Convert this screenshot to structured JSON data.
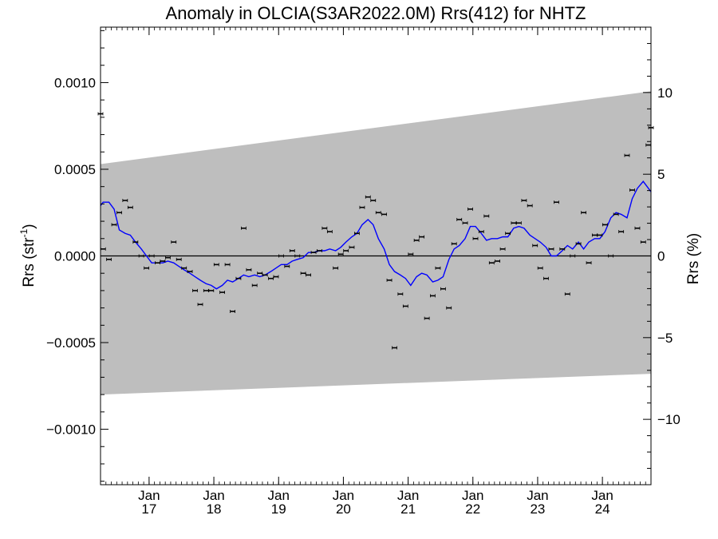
{
  "chart_data": {
    "type": "scatter",
    "title": "Anomaly in OLCIA(S3AR2022.0M) Rrs(412) for NHTZ",
    "ylabel": "Rrs (str",
    "ylabel_sup": "-1",
    "ylabel_close": ")",
    "y2label": "Rrs (%)",
    "xlim": [
      2016.25,
      2024.75
    ],
    "ylim": [
      -0.00132,
      0.00132
    ],
    "y2lim": [
      -14,
      14
    ],
    "x_ticks": [
      {
        "x": 2017.0,
        "month": "Jan",
        "year": "17"
      },
      {
        "x": 2018.0,
        "month": "Jan",
        "year": "18"
      },
      {
        "x": 2019.0,
        "month": "Jan",
        "year": "19"
      },
      {
        "x": 2020.0,
        "month": "Jan",
        "year": "20"
      },
      {
        "x": 2021.0,
        "month": "Jan",
        "year": "21"
      },
      {
        "x": 2022.0,
        "month": "Jan",
        "year": "22"
      },
      {
        "x": 2023.0,
        "month": "Jan",
        "year": "23"
      },
      {
        "x": 2024.0,
        "month": "Jan",
        "year": "24"
      }
    ],
    "y_ticks": [
      {
        "v": 0.001,
        "label": "0.0010"
      },
      {
        "v": 0.0005,
        "label": "0.0005"
      },
      {
        "v": 0.0,
        "label": "0.0000"
      },
      {
        "v": -0.0005,
        "label": "−0.0005"
      },
      {
        "v": -0.001,
        "label": "−0.0010"
      }
    ],
    "y2_ticks": [
      {
        "v": 10,
        "label": "10"
      },
      {
        "v": 5,
        "label": "5"
      },
      {
        "v": 0,
        "label": "0"
      },
      {
        "v": -5,
        "label": "−5"
      },
      {
        "v": -10,
        "label": "−10"
      }
    ],
    "band": {
      "upper": [
        [
          2016.25,
          0.00053
        ],
        [
          2024.75,
          0.00095
        ]
      ],
      "lower": [
        [
          2016.25,
          -0.0008
        ],
        [
          2024.75,
          -0.00068
        ]
      ],
      "color": "#bebebe"
    },
    "zero_line": true,
    "points": [
      [
        2016.25,
        0.00082
      ],
      [
        2016.29,
        4e-05
      ],
      [
        2016.38,
        -2e-05
      ],
      [
        2016.46,
        0.00018
      ],
      [
        2016.54,
        0.00025
      ],
      [
        2016.63,
        0.00032
      ],
      [
        2016.71,
        0.00028
      ],
      [
        2016.79,
        8e-05
      ],
      [
        2016.88,
        0.0
      ],
      [
        2016.96,
        -7e-05
      ],
      [
        2017.04,
        0.0
      ],
      [
        2017.13,
        -4e-05
      ],
      [
        2017.21,
        -3e-05
      ],
      [
        2017.29,
        -1e-05
      ],
      [
        2017.38,
        8e-05
      ],
      [
        2017.46,
        -2e-05
      ],
      [
        2017.54,
        -7e-05
      ],
      [
        2017.63,
        -9e-05
      ],
      [
        2017.71,
        -0.0002
      ],
      [
        2017.79,
        -0.00028
      ],
      [
        2017.88,
        -0.0002
      ],
      [
        2017.96,
        -0.0002
      ],
      [
        2018.04,
        -5e-05
      ],
      [
        2018.13,
        -0.00021
      ],
      [
        2018.21,
        -5e-05
      ],
      [
        2018.29,
        -0.00032
      ],
      [
        2018.38,
        -0.00013
      ],
      [
        2018.46,
        0.00016
      ],
      [
        2018.54,
        -8e-05
      ],
      [
        2018.63,
        -0.00017
      ],
      [
        2018.71,
        -0.0001
      ],
      [
        2018.79,
        -0.00011
      ],
      [
        2018.88,
        -0.00013
      ],
      [
        2018.96,
        -0.00012
      ],
      [
        2019.04,
        0.0
      ],
      [
        2019.13,
        -6e-05
      ],
      [
        2019.21,
        3e-05
      ],
      [
        2019.29,
        0.0
      ],
      [
        2019.38,
        -0.0001
      ],
      [
        2019.46,
        -0.00011
      ],
      [
        2019.54,
        2e-05
      ],
      [
        2019.63,
        3e-05
      ],
      [
        2019.71,
        0.00016
      ],
      [
        2019.79,
        0.00014
      ],
      [
        2019.88,
        -7e-05
      ],
      [
        2019.96,
        1e-05
      ],
      [
        2020.04,
        3e-05
      ],
      [
        2020.13,
        5e-05
      ],
      [
        2020.21,
        0.00013
      ],
      [
        2020.29,
        0.00028
      ],
      [
        2020.38,
        0.00034
      ],
      [
        2020.46,
        0.00032
      ],
      [
        2020.54,
        0.00025
      ],
      [
        2020.63,
        0.00024
      ],
      [
        2020.71,
        -0.00014
      ],
      [
        2020.79,
        -0.00053
      ],
      [
        2020.88,
        -0.00022
      ],
      [
        2020.96,
        -0.00029
      ],
      [
        2021.04,
        1e-05
      ],
      [
        2021.13,
        9e-05
      ],
      [
        2021.21,
        0.00011
      ],
      [
        2021.29,
        -0.00036
      ],
      [
        2021.38,
        -0.00023
      ],
      [
        2021.46,
        -7e-05
      ],
      [
        2021.54,
        -0.00019
      ],
      [
        2021.63,
        -0.0003
      ],
      [
        2021.71,
        7e-05
      ],
      [
        2021.79,
        0.00021
      ],
      [
        2021.88,
        0.00019
      ],
      [
        2021.96,
        0.00027
      ],
      [
        2022.04,
        0.0001
      ],
      [
        2022.13,
        0.00014
      ],
      [
        2022.21,
        0.00023
      ],
      [
        2022.29,
        -4e-05
      ],
      [
        2022.38,
        -3e-05
      ],
      [
        2022.46,
        4e-05
      ],
      [
        2022.54,
        0.00013
      ],
      [
        2022.63,
        0.00019
      ],
      [
        2022.71,
        0.00019
      ],
      [
        2022.79,
        0.00032
      ],
      [
        2022.88,
        0.00029
      ],
      [
        2022.96,
        6e-05
      ],
      [
        2023.04,
        -7e-05
      ],
      [
        2023.13,
        -0.00013
      ],
      [
        2023.21,
        4e-05
      ],
      [
        2023.29,
        0.00031
      ],
      [
        2023.38,
        4e-05
      ],
      [
        2023.46,
        -0.00022
      ],
      [
        2023.54,
        0.0
      ],
      [
        2023.63,
        7e-05
      ],
      [
        2023.71,
        0.00025
      ],
      [
        2023.79,
        -4e-05
      ],
      [
        2023.88,
        0.00012
      ],
      [
        2023.96,
        0.00012
      ],
      [
        2024.04,
        0.00018
      ],
      [
        2024.13,
        0.0
      ],
      [
        2024.21,
        0.00024
      ],
      [
        2024.29,
        0.00014
      ],
      [
        2024.38,
        0.00058
      ],
      [
        2024.46,
        0.00038
      ],
      [
        2024.54,
        0.00016
      ],
      [
        2024.63,
        8e-05
      ],
      [
        2024.71,
        0.00064
      ],
      [
        2024.75,
        0.00074
      ]
    ],
    "point_color": "#000000",
    "smooth_line": {
      "color": "#0000ff",
      "values": [
        [
          2016.25,
          0.00029
        ],
        [
          2016.29,
          0.00031
        ],
        [
          2016.38,
          0.00031
        ],
        [
          2016.46,
          0.00027
        ],
        [
          2016.54,
          0.00015
        ],
        [
          2016.63,
          0.00013
        ],
        [
          2016.71,
          0.00012
        ],
        [
          2016.79,
          8e-05
        ],
        [
          2016.88,
          4e-05
        ],
        [
          2016.96,
          0.0
        ],
        [
          2017.04,
          -4e-05
        ],
        [
          2017.13,
          -4e-05
        ],
        [
          2017.21,
          -4e-05
        ],
        [
          2017.29,
          -3e-05
        ],
        [
          2017.38,
          -4e-05
        ],
        [
          2017.46,
          -6e-05
        ],
        [
          2017.54,
          -8e-05
        ],
        [
          2017.63,
          -0.0001
        ],
        [
          2017.71,
          -0.00012
        ],
        [
          2017.79,
          -0.00014
        ],
        [
          2017.88,
          -0.00016
        ],
        [
          2017.96,
          -0.00017
        ],
        [
          2018.04,
          -0.00019
        ],
        [
          2018.13,
          -0.00017
        ],
        [
          2018.21,
          -0.00014
        ],
        [
          2018.29,
          -0.00015
        ],
        [
          2018.38,
          -0.00013
        ],
        [
          2018.46,
          -0.00011
        ],
        [
          2018.54,
          -0.00012
        ],
        [
          2018.63,
          -0.00011
        ],
        [
          2018.71,
          -0.00012
        ],
        [
          2018.79,
          -0.00011
        ],
        [
          2018.88,
          -9e-05
        ],
        [
          2018.96,
          -7e-05
        ],
        [
          2019.04,
          -5e-05
        ],
        [
          2019.13,
          -5e-05
        ],
        [
          2019.21,
          -3e-05
        ],
        [
          2019.29,
          -2e-05
        ],
        [
          2019.38,
          -1e-05
        ],
        [
          2019.46,
          2e-05
        ],
        [
          2019.54,
          2e-05
        ],
        [
          2019.63,
          3e-05
        ],
        [
          2019.71,
          3e-05
        ],
        [
          2019.79,
          4e-05
        ],
        [
          2019.88,
          3e-05
        ],
        [
          2019.96,
          5e-05
        ],
        [
          2020.04,
          8e-05
        ],
        [
          2020.13,
          0.00011
        ],
        [
          2020.21,
          0.00013
        ],
        [
          2020.29,
          0.00018
        ],
        [
          2020.38,
          0.00021
        ],
        [
          2020.46,
          0.00018
        ],
        [
          2020.54,
          0.0001
        ],
        [
          2020.63,
          4e-05
        ],
        [
          2020.71,
          -5e-05
        ],
        [
          2020.79,
          -9e-05
        ],
        [
          2020.88,
          -0.00011
        ],
        [
          2020.96,
          -0.00013
        ],
        [
          2021.04,
          -0.00017
        ],
        [
          2021.13,
          -0.00012
        ],
        [
          2021.21,
          -0.0001
        ],
        [
          2021.29,
          -0.00011
        ],
        [
          2021.38,
          -0.00015
        ],
        [
          2021.46,
          -0.00014
        ],
        [
          2021.54,
          -0.00012
        ],
        [
          2021.63,
          -2e-05
        ],
        [
          2021.71,
          4e-05
        ],
        [
          2021.79,
          6e-05
        ],
        [
          2021.88,
          0.0001
        ],
        [
          2021.96,
          0.00017
        ],
        [
          2022.04,
          0.00017
        ],
        [
          2022.13,
          0.00013
        ],
        [
          2022.21,
          9e-05
        ],
        [
          2022.29,
          0.0001
        ],
        [
          2022.38,
          0.0001
        ],
        [
          2022.46,
          0.00011
        ],
        [
          2022.54,
          0.00011
        ],
        [
          2022.63,
          0.00016
        ],
        [
          2022.71,
          0.00017
        ],
        [
          2022.79,
          0.00016
        ],
        [
          2022.88,
          0.00012
        ],
        [
          2022.96,
          0.0001
        ],
        [
          2023.04,
          8e-05
        ],
        [
          2023.13,
          5e-05
        ],
        [
          2023.21,
          0.0
        ],
        [
          2023.29,
          0.0
        ],
        [
          2023.38,
          3e-05
        ],
        [
          2023.46,
          6e-05
        ],
        [
          2023.54,
          4e-05
        ],
        [
          2023.63,
          8e-05
        ],
        [
          2023.71,
          4e-05
        ],
        [
          2023.79,
          8e-05
        ],
        [
          2023.88,
          0.0001
        ],
        [
          2023.96,
          0.0001
        ],
        [
          2024.04,
          0.00014
        ],
        [
          2024.13,
          0.00022
        ],
        [
          2024.21,
          0.00025
        ],
        [
          2024.29,
          0.00024
        ],
        [
          2024.38,
          0.00022
        ],
        [
          2024.46,
          0.00033
        ],
        [
          2024.54,
          0.00039
        ],
        [
          2024.63,
          0.00043
        ],
        [
          2024.71,
          0.00039
        ],
        [
          2024.75,
          0.00037
        ]
      ]
    },
    "grid": false,
    "legend": "none"
  }
}
